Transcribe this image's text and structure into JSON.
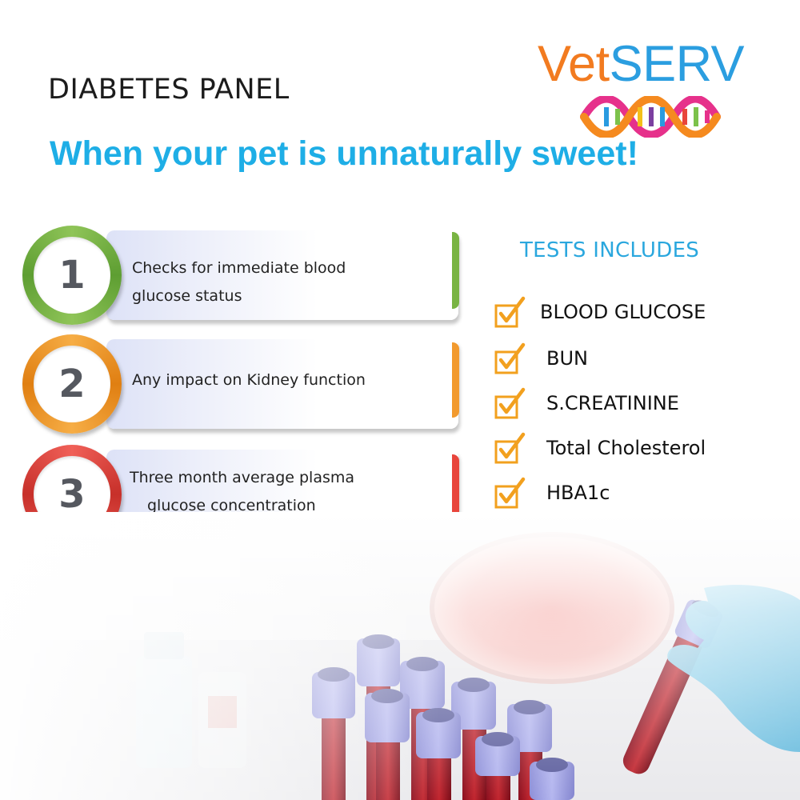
{
  "header": {
    "panel_title": "DIABETES PANEL",
    "tagline": "When your pet is unnaturally sweet!"
  },
  "logo": {
    "text_part1": "Vet",
    "text_part2": "SERV",
    "colors": {
      "vet": "#f27b20",
      "serv": "#2b9ee0"
    }
  },
  "steps": [
    {
      "number": "1",
      "lines": [
        "Checks for immediate blood",
        "glucose status"
      ],
      "color": "#79b443"
    },
    {
      "number": "2",
      "lines": [
        "Any impact on Kidney function"
      ],
      "color": "#f29a2e"
    },
    {
      "number": "3",
      "lines": [
        "Three month average plasma",
        "glucose concentration"
      ],
      "color": "#e8453c"
    }
  ],
  "tests": {
    "heading": "TESTS INCLUDES",
    "icon": "checkbox-check-icon",
    "items": [
      "BLOOD GLUCOSE",
      "BUN",
      "S.CREATININE",
      "Total Cholesterol",
      "HBA1c"
    ]
  }
}
